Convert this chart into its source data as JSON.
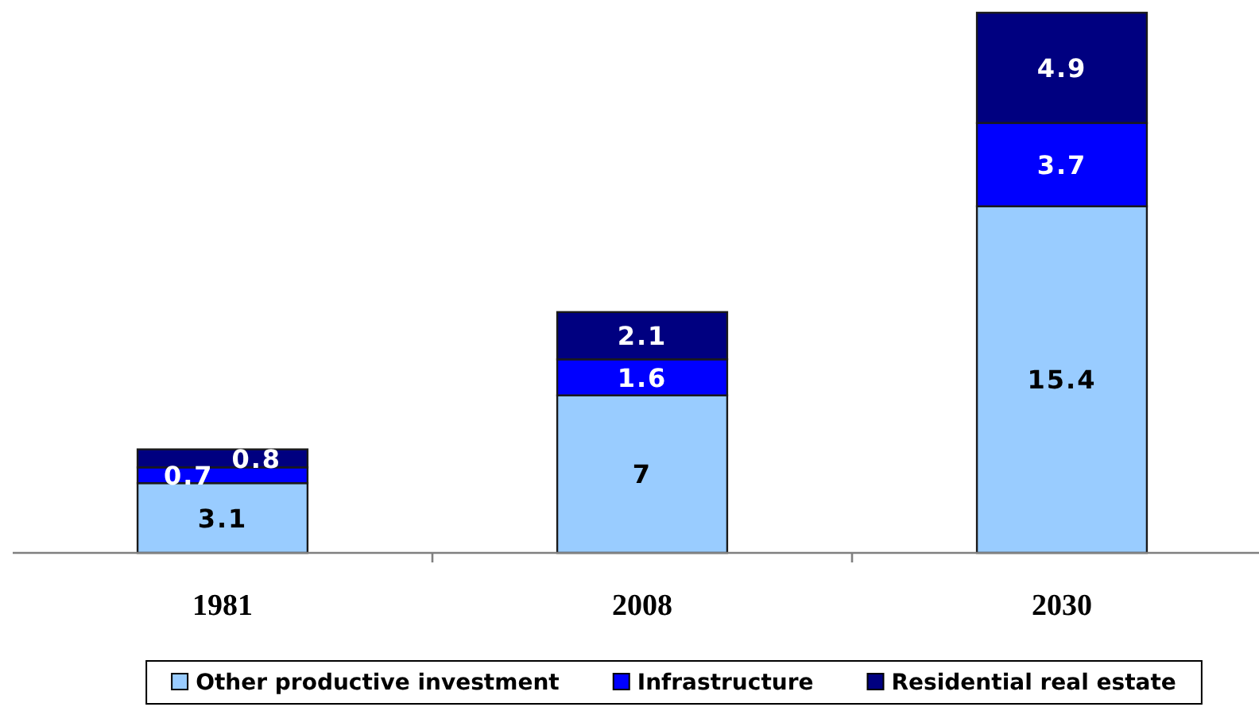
{
  "chart_data": {
    "type": "bar",
    "stacked": true,
    "categories": [
      "1981",
      "2008",
      "2030"
    ],
    "series": [
      {
        "name": "Other productive investment",
        "color": "#99ccff",
        "values": [
          3.1,
          7,
          15.4
        ]
      },
      {
        "name": "Infrastructure",
        "color": "#0000ff",
        "values": [
          0.7,
          1.6,
          3.7
        ]
      },
      {
        "name": "Residential real estate",
        "color": "#000080",
        "values": [
          0.8,
          2.1,
          4.9
        ]
      }
    ],
    "data_labels": true,
    "legend": "bottom"
  }
}
